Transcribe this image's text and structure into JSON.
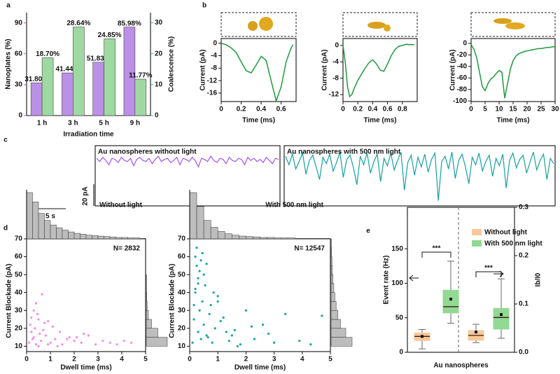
{
  "chart_data": [
    {
      "type": "bar",
      "panel_label": "a",
      "categories": [
        "1 h",
        "3 h",
        "5 h",
        "9 h"
      ],
      "series": [
        {
          "color": "#bb90e6",
          "values": [
            31.8,
            41.44,
            51.83,
            85.98
          ],
          "value_labels": [
            "31.80%",
            "41.44%",
            "51.83%",
            "85.98%"
          ]
        },
        {
          "color": "#9fd9a2",
          "axis": "y2",
          "values": [
            18.7,
            28.64,
            24.85,
            11.77
          ],
          "value_labels": [
            "18.70%",
            "28.64%",
            "24.85%",
            "11.77%"
          ]
        }
      ],
      "x_label": "Irradiation time",
      "y_label": "Nanoplates (%)",
      "y2_label": "Coalescence (%)",
      "ylim": [
        0,
        100
      ],
      "yticks": [
        0,
        30,
        60,
        90
      ],
      "y2lim": [
        0,
        33.3
      ],
      "y2ticks": [
        0,
        10,
        20,
        30
      ]
    },
    {
      "type": "line",
      "panel_label": "b",
      "color": "#1e9a3c",
      "x": [
        0,
        0.05,
        0.1,
        0.15,
        0.2,
        0.25,
        0.3,
        0.35,
        0.4,
        0.45,
        0.5,
        0.55,
        0.6,
        0.65,
        0.7,
        0.72
      ],
      "values": [
        0,
        -0.5,
        -1.5,
        -3,
        -6,
        -8.8,
        -9.5,
        -7,
        -4.2,
        -5.5,
        -12,
        -18.5,
        -14,
        -6,
        -1.5,
        -0.5
      ],
      "x_label": "Time (ms)",
      "y_label": "Current (pA)",
      "xlim": [
        0,
        0.75
      ],
      "xticks": [
        0,
        0.2,
        0.4,
        0.6
      ],
      "ylim": [
        -18.7,
        1.5
      ],
      "yticks": [
        0,
        -4,
        -8,
        -12,
        -16
      ]
    },
    {
      "type": "line",
      "color": "#1e9a3c",
      "x": [
        0,
        0.03,
        0.06,
        0.09,
        0.12,
        0.15,
        0.2,
        0.25,
        0.3,
        0.35,
        0.4,
        0.45,
        0.5,
        0.55,
        0.6,
        0.65,
        0.7,
        0.75,
        0.8,
        0.85,
        0.9,
        0.96
      ],
      "values": [
        0,
        -4,
        -10,
        -12.5,
        -12,
        -10.5,
        -8.5,
        -7,
        -5.5,
        -4.2,
        -3.5,
        -4.5,
        -6,
        -6.3,
        -4.5,
        -2.5,
        -1,
        -0.2,
        0,
        0.3,
        0.2,
        0.2
      ],
      "x_label": "Time (ms)",
      "y_label": "Current (pA)",
      "xlim": [
        0,
        1
      ],
      "xticks": [
        0,
        0.2,
        0.4,
        0.6,
        0.8
      ],
      "ylim": [
        -13.7,
        1.7
      ],
      "yticks": [
        0,
        -4,
        -8,
        -12
      ]
    },
    {
      "type": "line",
      "color": "#1e9a3c",
      "x": [
        0,
        1,
        2,
        3,
        4,
        5,
        6,
        7,
        8,
        9,
        10,
        11,
        12,
        13,
        14,
        15,
        16,
        17,
        18,
        19,
        20,
        21,
        22,
        23,
        24,
        25,
        26,
        27,
        28,
        29,
        30
      ],
      "values": [
        -2,
        -10,
        -25,
        -50,
        -75,
        -82,
        -70,
        -62,
        -58,
        -52,
        -47,
        -50,
        -95,
        -70,
        -45,
        -30,
        -22,
        -18,
        -16,
        -14,
        -13,
        -12,
        -11,
        -10,
        -9,
        -9,
        -8,
        -7,
        -7,
        -6,
        -6
      ],
      "x_label": "Time (ms)",
      "y_label": "Current (pA)",
      "xlim": [
        0,
        30
      ],
      "xticks": [
        0,
        5,
        10,
        15,
        20,
        25,
        30
      ],
      "ylim": [
        -101,
        8.5
      ],
      "yticks": [
        0,
        -20,
        -40,
        -60,
        -80,
        -100
      ]
    },
    {
      "type": "trace",
      "panel_label": "c",
      "title": "Au nanospheres without light",
      "color": "#a452f2",
      "scale_bars": [
        "20 pA",
        "5 s"
      ],
      "ylim": [
        -45,
        12
      ],
      "values": [
        0,
        -3,
        1,
        -2,
        -6,
        0,
        -1,
        -4,
        1,
        -2,
        -3,
        0,
        -7,
        -1,
        1,
        -2,
        -3,
        0,
        -5,
        -1,
        2,
        -3,
        -1,
        0,
        -4,
        -2,
        1,
        -6,
        0,
        -1,
        -3,
        1,
        -2,
        -8,
        0,
        -1,
        -3,
        2,
        -2,
        -4,
        0,
        -1,
        -5,
        1,
        -2,
        -3,
        0,
        -1,
        -6,
        1,
        -2,
        0,
        -3,
        -1,
        -4,
        1,
        -2,
        -5,
        0,
        -1
      ]
    },
    {
      "type": "trace",
      "title": "Au nanospheres with 500 nm light",
      "color": "#15a0a0",
      "ylim": [
        -45,
        12
      ],
      "values": [
        2,
        -6,
        4,
        -10,
        -3,
        5,
        -15,
        -2,
        3,
        -8,
        -20,
        1,
        -5,
        4,
        -12,
        -4,
        6,
        -18,
        -1,
        3,
        -9,
        -25,
        2,
        -6,
        5,
        -14,
        -3,
        4,
        -22,
        0,
        -7,
        5,
        -11,
        -2,
        6,
        -30,
        -4,
        3,
        -16,
        1,
        -8,
        4,
        -13,
        -1,
        5,
        -40,
        -3,
        2,
        -10,
        6,
        -19,
        -2,
        4,
        -8,
        -24,
        1,
        -6,
        5,
        -12,
        -3,
        3,
        -17,
        0,
        -7,
        4,
        -28,
        -2,
        5,
        -9,
        -1,
        3,
        -14,
        -4,
        6,
        -11,
        -2,
        4,
        -20,
        0,
        -5
      ]
    },
    {
      "type": "scatter",
      "panel_label": "d",
      "title": "Without light",
      "annotation": "N= 2832",
      "color": "#f28ce9",
      "x": [
        0.1,
        0.2,
        0.3,
        0.15,
        0.4,
        0.5,
        0.25,
        0.6,
        0.35,
        0.8,
        0.45,
        1.0,
        0.7,
        1.2,
        0.9,
        1.5,
        0.55,
        1.8,
        1.1,
        2.0,
        0.3,
        2.3,
        1.4,
        2.6,
        0.65,
        2.9,
        1.7,
        3.2,
        0.2,
        3.5,
        2.1,
        3.8,
        0.4,
        4.1,
        1.3,
        4.4,
        0.75,
        0.5,
        0.9,
        2.4
      ],
      "values": [
        12,
        18,
        15,
        22,
        11,
        25,
        14,
        13,
        20,
        16,
        28,
        12,
        19,
        14,
        24,
        11,
        17,
        15,
        21,
        13,
        30,
        12,
        18,
        16,
        39,
        11,
        14,
        13,
        26,
        12,
        15,
        11,
        34,
        13,
        10,
        12,
        23,
        10,
        11,
        17
      ],
      "x_hist": {
        "bins": [
          0,
          0.25,
          0.5,
          0.75,
          1,
          1.25,
          1.5,
          1.75,
          2,
          2.25,
          2.5,
          2.75,
          3,
          3.25,
          3.5,
          3.75,
          4,
          4.25,
          4.5,
          4.75,
          5
        ],
        "counts": [
          100,
          80,
          55,
          40,
          30,
          24,
          19,
          15,
          12,
          10,
          8,
          7,
          6,
          5,
          4,
          3,
          3,
          2,
          2,
          1
        ]
      },
      "y_hist": {
        "bins": [
          10,
          15,
          20,
          25,
          30,
          35,
          40,
          45,
          50,
          55,
          60,
          65,
          70
        ],
        "counts": [
          100,
          55,
          25,
          10,
          4,
          2,
          1,
          1,
          0,
          0,
          0,
          0
        ]
      },
      "x_label": "Dwell time (ms)",
      "y_label": "Current Blockade (pA)",
      "xlim": [
        0,
        5
      ],
      "xticks": [
        0,
        1,
        2,
        3,
        4,
        5
      ],
      "ylim": [
        7,
        70
      ],
      "yticks": [
        10,
        20,
        30,
        40,
        50,
        60,
        70
      ]
    },
    {
      "type": "scatter",
      "title": "With 500 nm light",
      "annotation": "N= 12547",
      "color": "#15a3a0",
      "x": [
        0.1,
        0.15,
        0.2,
        0.25,
        0.3,
        0.2,
        0.35,
        0.4,
        0.3,
        0.5,
        0.45,
        0.6,
        0.25,
        0.7,
        0.55,
        0.8,
        0.35,
        0.9,
        1.0,
        0.65,
        1.2,
        0.4,
        1.4,
        0.75,
        1.6,
        0.3,
        1.8,
        1.1,
        2.0,
        0.5,
        2.3,
        1.3,
        2.6,
        0.85,
        3.0,
        1.5,
        3.4,
        0.6,
        3.9,
        2.2,
        4.3,
        1.0,
        4.7,
        0.2,
        0.45,
        0.15,
        2.8,
        1.7
      ],
      "values": [
        12,
        25,
        40,
        55,
        18,
        60,
        30,
        14,
        48,
        22,
        35,
        16,
        65,
        28,
        44,
        12,
        52,
        20,
        38,
        15,
        26,
        58,
        13,
        33,
        19,
        45,
        11,
        24,
        30,
        50,
        14,
        18,
        22,
        40,
        12,
        16,
        28,
        56,
        13,
        21,
        11,
        35,
        27,
        42,
        62,
        33,
        17,
        10
      ],
      "x_hist": {
        "bins": [
          0,
          0.25,
          0.5,
          0.75,
          1,
          1.25,
          1.5,
          1.75,
          2,
          2.25,
          2.5,
          2.75,
          3,
          3.25,
          3.5,
          3.75,
          4,
          4.25,
          4.5,
          4.75,
          5
        ],
        "counts": [
          100,
          70,
          40,
          25,
          16,
          11,
          8,
          6,
          5,
          4,
          3,
          3,
          2,
          2,
          2,
          1,
          1,
          1,
          1,
          1
        ]
      },
      "y_hist": {
        "bins": [
          10,
          15,
          20,
          25,
          30,
          35,
          40,
          45,
          50,
          55,
          60,
          65,
          70
        ],
        "counts": [
          100,
          70,
          45,
          32,
          24,
          18,
          13,
          9,
          6,
          4,
          2,
          1
        ]
      },
      "x_label": "Dwell time (ms)",
      "y_label": "Current Blockade (pA)",
      "xlim": [
        0,
        5
      ],
      "xticks": [
        0,
        1,
        2,
        3,
        4,
        5
      ],
      "ylim": [
        7,
        70
      ],
      "yticks": [
        10,
        20,
        30,
        40,
        50,
        60,
        70
      ]
    },
    {
      "type": "box",
      "panel_label": "e",
      "x_label": "Au nanospheres",
      "y_label": "Event rate (Hz)",
      "y2_label": "Ib/I0",
      "annotations": [
        "***",
        "***"
      ],
      "series": [
        {
          "name": "Without light",
          "color": "#f9c89b",
          "values": [
            {
              "min": 5,
              "q1": 17,
              "median": 23,
              "q3": 28,
              "max": 33,
              "mean": 23
            },
            {
              "min": 0.02,
              "q1": 0.025,
              "median": 0.035,
              "q3": 0.045,
              "max": 0.058,
              "mean": 0.042
            }
          ]
        },
        {
          "name": "With 500 nm light",
          "color": "#92d993",
          "values": [
            {
              "min": 42,
              "q1": 57,
              "median": 66,
              "q3": 90,
              "max": 132,
              "mean": 77
            },
            {
              "min": 0.029,
              "q1": 0.048,
              "median": 0.072,
              "q3": 0.091,
              "max": 0.152,
              "mean": 0.078
            }
          ]
        }
      ],
      "ylim": [
        0,
        210
      ],
      "yticks": [
        0,
        50,
        100,
        150
      ],
      "y2lim": [
        0,
        0.3
      ],
      "y2ticks": [
        {
          "value": 0,
          "label": "0.0"
        },
        0.1,
        0.2,
        0.3
      ]
    }
  ]
}
